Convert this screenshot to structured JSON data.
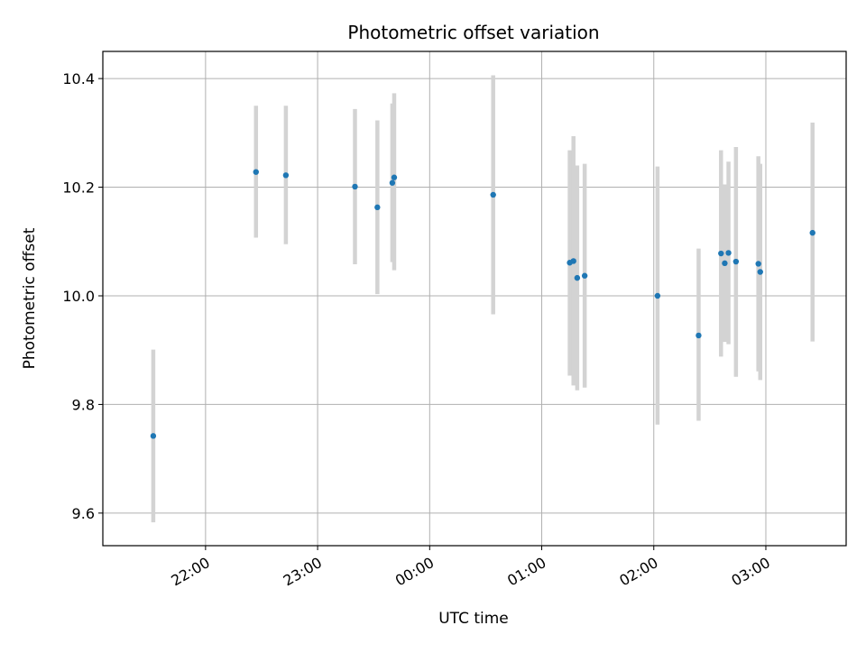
{
  "chart_data": {
    "type": "scatter",
    "title": "Photometric offset variation",
    "xlabel": "UTC time",
    "ylabel": "Photometric offset",
    "x_axis": "time",
    "xlim": [
      "21:05",
      "03:43"
    ],
    "ylim": [
      9.54,
      10.45
    ],
    "xticks": [
      "22:00",
      "23:00",
      "00:00",
      "01:00",
      "02:00",
      "03:00"
    ],
    "yticks": [
      "9.6",
      "9.8",
      "10.0",
      "10.2",
      "10.4"
    ],
    "grid": true,
    "colors": {
      "point": "#1f77b4",
      "errorbar": "#d3d3d3",
      "grid": "#b0b0b0"
    },
    "points": [
      {
        "x": "21:32",
        "y": 9.742,
        "ylo": 9.583,
        "yhi": 9.901
      },
      {
        "x": "22:27",
        "y": 10.228,
        "ylo": 10.107,
        "yhi": 10.35
      },
      {
        "x": "22:43",
        "y": 10.222,
        "ylo": 10.095,
        "yhi": 10.35
      },
      {
        "x": "23:20",
        "y": 10.201,
        "ylo": 10.058,
        "yhi": 10.344
      },
      {
        "x": "23:32",
        "y": 10.163,
        "ylo": 10.003,
        "yhi": 10.323
      },
      {
        "x": "23:40",
        "y": 10.208,
        "ylo": 10.062,
        "yhi": 10.354
      },
      {
        "x": "23:41",
        "y": 10.218,
        "ylo": 10.047,
        "yhi": 10.373
      },
      {
        "x": "00:34",
        "y": 10.186,
        "ylo": 9.966,
        "yhi": 10.406
      },
      {
        "x": "01:15",
        "y": 10.061,
        "ylo": 9.853,
        "yhi": 10.268
      },
      {
        "x": "01:17",
        "y": 10.064,
        "ylo": 9.835,
        "yhi": 10.294
      },
      {
        "x": "01:19",
        "y": 10.033,
        "ylo": 9.826,
        "yhi": 10.24
      },
      {
        "x": "01:23",
        "y": 10.037,
        "ylo": 9.831,
        "yhi": 10.243
      },
      {
        "x": "02:02",
        "y": 10.0,
        "ylo": 9.763,
        "yhi": 10.238
      },
      {
        "x": "02:24",
        "y": 9.927,
        "ylo": 9.77,
        "yhi": 10.087
      },
      {
        "x": "02:36",
        "y": 10.078,
        "ylo": 9.888,
        "yhi": 10.268
      },
      {
        "x": "02:38",
        "y": 10.06,
        "ylo": 9.915,
        "yhi": 10.205
      },
      {
        "x": "02:40",
        "y": 10.079,
        "ylo": 9.911,
        "yhi": 10.247
      },
      {
        "x": "02:44",
        "y": 10.063,
        "ylo": 9.851,
        "yhi": 10.274
      },
      {
        "x": "02:56",
        "y": 10.059,
        "ylo": 9.861,
        "yhi": 10.257
      },
      {
        "x": "02:57",
        "y": 10.044,
        "ylo": 9.845,
        "yhi": 10.243
      },
      {
        "x": "03:25",
        "y": 10.116,
        "ylo": 9.916,
        "yhi": 10.319
      }
    ]
  }
}
